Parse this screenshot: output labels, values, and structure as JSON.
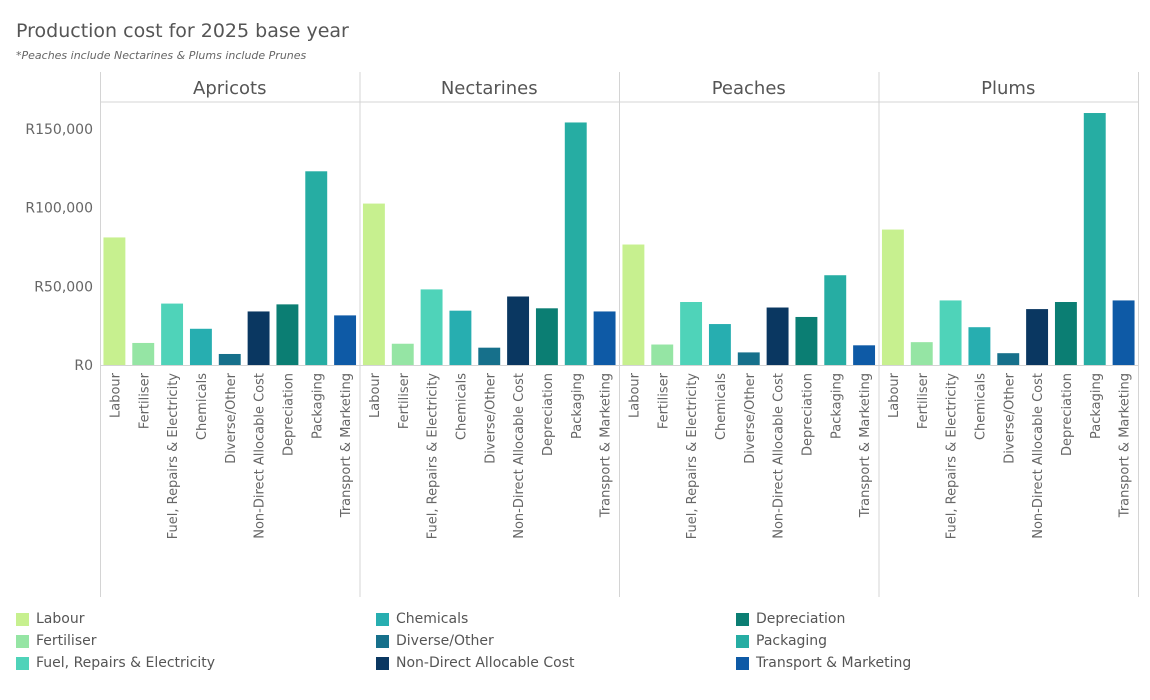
{
  "chart_data": {
    "type": "bar",
    "title": "Production cost for 2025 base year",
    "subtitle": "*Peaches include Nectarines & Plums include Prunes",
    "xlabel": "",
    "ylabel": "",
    "ylim": [
      0,
      167000
    ],
    "yticks": [
      {
        "value": 0,
        "label": "R0"
      },
      {
        "value": 50000,
        "label": "R50,000"
      },
      {
        "value": 100000,
        "label": "R100,000"
      },
      {
        "value": 150000,
        "label": "R150,000"
      }
    ],
    "grid": false,
    "legend_position": "bottom",
    "categories": [
      "Labour",
      "Fertiliser",
      "Fuel, Repairs & Electricity",
      "Chemicals",
      "Diverse/Other",
      "Non-Direct Allocable Cost",
      "Depreciation",
      "Packaging",
      "Transport & Marketing"
    ],
    "colors": {
      "Labour": "#c7f08f",
      "Fertiliser": "#95e5a4",
      "Fuel, Repairs & Electricity": "#4fd3b9",
      "Chemicals": "#27aeb0",
      "Diverse/Other": "#16708b",
      "Non-Direct Allocable Cost": "#0a3761",
      "Depreciation": "#0b7e73",
      "Packaging": "#26ada3",
      "Transport & Marketing": "#0e5aa6"
    },
    "panels": [
      {
        "name": "Apricots",
        "values": [
          81000,
          14000,
          39000,
          23000,
          7000,
          34000,
          38500,
          123000,
          31500
        ]
      },
      {
        "name": "Nectarines",
        "values": [
          102500,
          13500,
          48000,
          34500,
          11000,
          43500,
          36000,
          154000,
          34000
        ]
      },
      {
        "name": "Peaches",
        "values": [
          76500,
          13000,
          40000,
          26000,
          8000,
          36500,
          30500,
          57000,
          12500
        ]
      },
      {
        "name": "Plums",
        "values": [
          86000,
          14500,
          41000,
          24000,
          7500,
          35500,
          40000,
          160000,
          41000
        ]
      }
    ]
  },
  "legend": {
    "columns": [
      [
        "Labour",
        "Fertiliser",
        "Fuel, Repairs & Electricity"
      ],
      [
        "Chemicals",
        "Diverse/Other",
        "Non-Direct Allocable Cost"
      ],
      [
        "Depreciation",
        "Packaging",
        "Transport & Marketing"
      ]
    ]
  }
}
